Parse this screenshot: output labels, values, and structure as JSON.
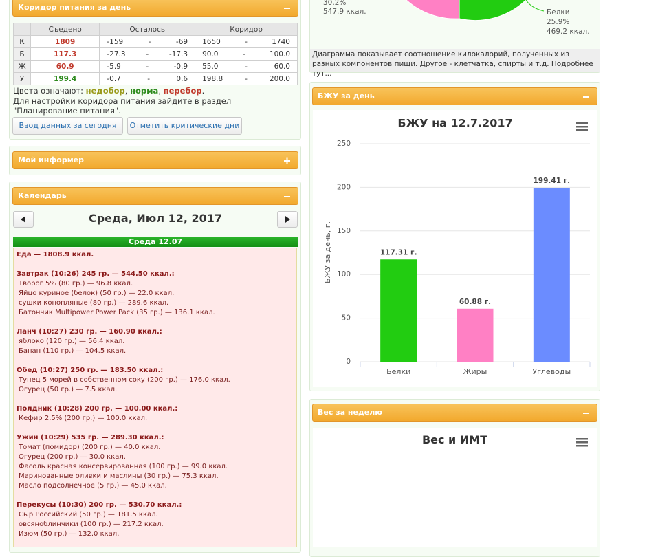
{
  "nutrition_panel": {
    "title": "Коридор питания за день",
    "headers": [
      "Съедено",
      "Осталось",
      "Коридор"
    ],
    "range_separator": "-",
    "rows": [
      {
        "letter": "К",
        "eaten": "1809",
        "left": [
          "-159",
          "-69"
        ],
        "corridor": [
          "1650",
          "1740"
        ]
      },
      {
        "letter": "Б",
        "eaten": "117.3",
        "left": [
          "-27.3",
          "-17.3"
        ],
        "corridor": [
          "90.0",
          "100.0"
        ]
      },
      {
        "letter": "Ж",
        "eaten": "60.9",
        "left": [
          "-5.9",
          "-0.9"
        ],
        "corridor": [
          "55.0",
          "60.0"
        ]
      },
      {
        "letter": "У",
        "eaten": "199.4",
        "left": [
          "-0.7",
          "0.6"
        ],
        "corridor": [
          "198.8",
          "200.0"
        ]
      }
    ],
    "legend": {
      "prefix": "Цвета означают:",
      "low": "недобор",
      "ok": "норма",
      "high": "перебор",
      "comma": ",",
      "end": "."
    },
    "note": "Для настройки коридора питания зайдите в раздел \"Планирование питания\".",
    "buttons": [
      "Ввод данных за сегодня",
      "Отметить критические дни"
    ]
  },
  "informer_panel": {
    "title": "Мой информер"
  },
  "calendar_panel": {
    "title": "Календарь",
    "date": "Среда, Июл 12, 2017",
    "day_header": "Среда 12.07",
    "total": "Еда — 1808.9 ккал.",
    "meals": [
      {
        "heading": "Завтрак (10:26) 245 гр. — 544.50 ккал.:",
        "items": [
          "Творог 5% (80 гр.) — 96.8 ккал.",
          "Яйцо куриное (белок) (50 гр.) — 22.0 ккал.",
          "сушки конопляные (80 гр.) — 289.6 ккал.",
          "Батончик Multipower Power Pack (35 гр.) — 136.1 ккал."
        ]
      },
      {
        "heading": "Ланч (10:27) 230 гр. — 160.90 ккал.:",
        "items": [
          "яблоко (120 гр.) — 56.4 ккал.",
          "Банан (110 гр.) — 104.5 ккал."
        ]
      },
      {
        "heading": "Обед (10:27) 250 гр. — 183.50 ккал.:",
        "items": [
          "Тунец 5 морей в собственном соку (200 гр.) — 176.0 ккал.",
          "Огурец (50 гр.) — 7.5 ккал."
        ]
      },
      {
        "heading": "Полдник (10:28) 200 гр. — 100.00 ккал.:",
        "items": [
          "Кефир 2.5% (200 гр.) — 100.0 ккал."
        ]
      },
      {
        "heading": "Ужин (10:29) 535 гр. — 289.30 ккал.:",
        "items": [
          "Томат (помидор) (200 гр.) — 40.0 ккал.",
          "Огурец (200 гр.) — 30.0 ккал.",
          "Фасоль красная консервированная (100 гр.) — 99.0 ккал.",
          "Маринованные оливки и маслины (30 гр.) — 75.3 ккал.",
          "Масло подсолнечное (5 гр.) — 45.0 ккал."
        ]
      },
      {
        "heading": "Перекусы (10:30) 200 гр. — 530.70 ккал.:",
        "items": [
          "Сыр Российский (50 гр.) — 181.5 ккал.",
          "овсяноблинчики (100 гр.) — 217.2 ккал.",
          "Изюм (50 гр.) — 132.0 ккал."
        ]
      }
    ]
  },
  "pie_panel": {
    "left_label": {
      "percent": "30.2%",
      "kcal": "547.9 ккал."
    },
    "right_label": {
      "name": "Белки",
      "percent": "25.9%",
      "kcal": "469.2 ккал."
    },
    "caption": "Диаграмма показывает соотношение килокалорий, полученных из разных компонентов пищи. Другое - клетчатка, спирты и т.д. Подробнее тут..."
  },
  "bju_panel": {
    "title": "БЖУ за день"
  },
  "chart_data": {
    "type": "bar",
    "title": "БЖУ на 12.7.2017",
    "y_label": "БЖУ за день, г.",
    "categories": [
      "Белки",
      "Жиры",
      "Углеводы"
    ],
    "values": [
      117.31,
      60.88,
      199.41
    ],
    "value_labels": [
      "117.31 г.",
      "60.88 г.",
      "199.41 г."
    ],
    "colors": [
      "#22cc11",
      "#ff80c4",
      "#6b8cff"
    ],
    "ylim": [
      0,
      250
    ],
    "yticks": [
      0,
      50,
      100,
      150,
      200,
      250
    ],
    "grid": true
  },
  "weight_panel": {
    "title": "Вес за неделю",
    "chart_title": "Вес и ИМТ"
  }
}
